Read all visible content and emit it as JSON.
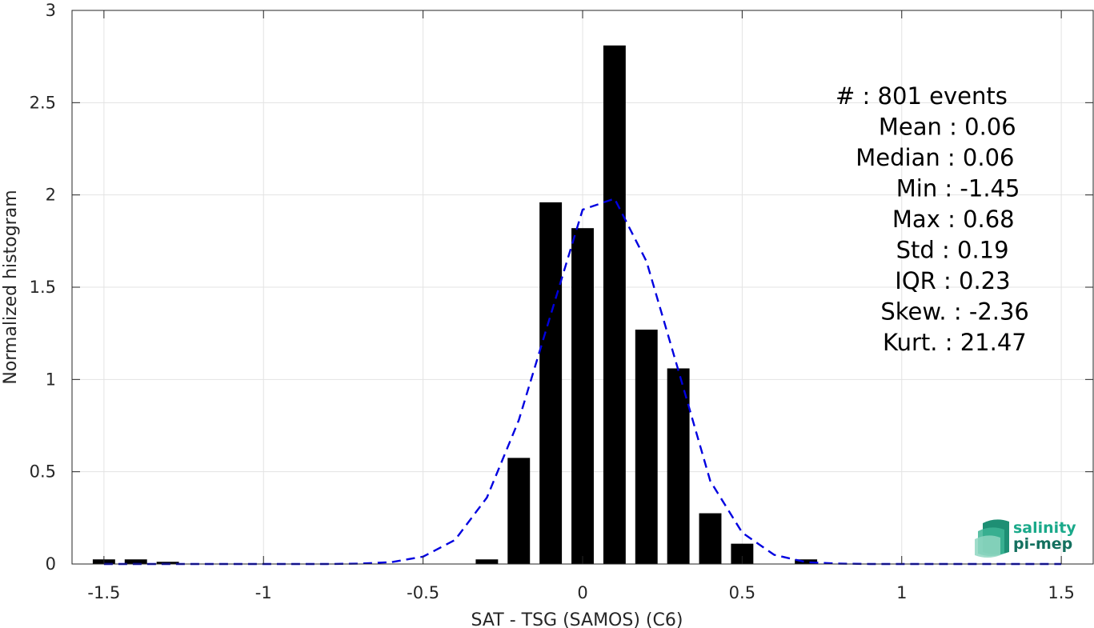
{
  "chart_data": {
    "type": "bar",
    "xlabel": "SAT - TSG (SAMOS) (C6)",
    "ylabel": "Normalized histogram",
    "xlim": [
      -1.6,
      1.6
    ],
    "ylim": [
      0,
      3
    ],
    "xticks": [
      -1.5,
      -1,
      -0.5,
      0,
      0.5,
      1,
      1.5
    ],
    "xtick_labels": [
      "-1.5",
      "-1",
      "-0.5",
      "0",
      "0.5",
      "1",
      "1.5"
    ],
    "yticks": [
      0,
      0.5,
      1,
      1.5,
      2,
      2.5,
      3
    ],
    "ytick_labels": [
      "0",
      "0.5",
      "1",
      "1.5",
      "2",
      "2.5",
      "3"
    ],
    "grid": true,
    "bar_color": "#000000",
    "bar_width": 0.07,
    "bars": {
      "x": [
        -1.5,
        -1.4,
        -1.3,
        -1.2,
        -1.1,
        -1.0,
        -0.9,
        -0.8,
        -0.7,
        -0.6,
        -0.5,
        -0.4,
        -0.3,
        -0.2,
        -0.1,
        0.0,
        0.1,
        0.2,
        0.3,
        0.4,
        0.5,
        0.6,
        0.7,
        0.8,
        0.9,
        1.0,
        1.1,
        1.2,
        1.3,
        1.4,
        1.5
      ],
      "values": [
        0.025,
        0.025,
        0.012,
        0,
        0,
        0,
        0,
        0,
        0,
        0,
        0,
        0,
        0.025,
        0.575,
        1.96,
        1.82,
        2.81,
        1.27,
        1.06,
        0.275,
        0.11,
        0,
        0.025,
        0,
        0,
        0,
        0,
        0,
        0,
        0,
        0
      ]
    },
    "fit_curve": {
      "style": "dashed",
      "color": "#0000e0",
      "x": [
        -1.5,
        -1.4,
        -1.3,
        -1.2,
        -1.1,
        -1.0,
        -0.9,
        -0.8,
        -0.7,
        -0.6,
        -0.5,
        -0.4,
        -0.3,
        -0.2,
        -0.1,
        0.0,
        0.1,
        0.2,
        0.3,
        0.4,
        0.5,
        0.6,
        0.7,
        0.8,
        0.9,
        1.0,
        1.1,
        1.2,
        1.3,
        1.4,
        1.5
      ],
      "y": [
        0,
        0,
        0,
        0,
        0,
        0,
        0,
        0,
        0.002,
        0.01,
        0.04,
        0.13,
        0.36,
        0.78,
        1.35,
        1.92,
        1.98,
        1.64,
        1.05,
        0.45,
        0.17,
        0.05,
        0.01,
        0.002,
        0,
        0,
        0,
        0,
        0,
        0,
        0
      ]
    },
    "annotation": {
      "placement": "top-right",
      "lines": [
        "#  : 801 events",
        "Mean : 0.06",
        "Median : 0.06",
        "Min : -1.45",
        "Max : 0.68",
        "Std : 0.19",
        "IQR : 0.23",
        "Skew. : -2.36",
        "Kurt. : 21.47"
      ]
    }
  },
  "logo": {
    "line1": "salinity",
    "line2": "pi-mep",
    "color_text1": "#1aa98a",
    "color_text2": "#14705f"
  }
}
